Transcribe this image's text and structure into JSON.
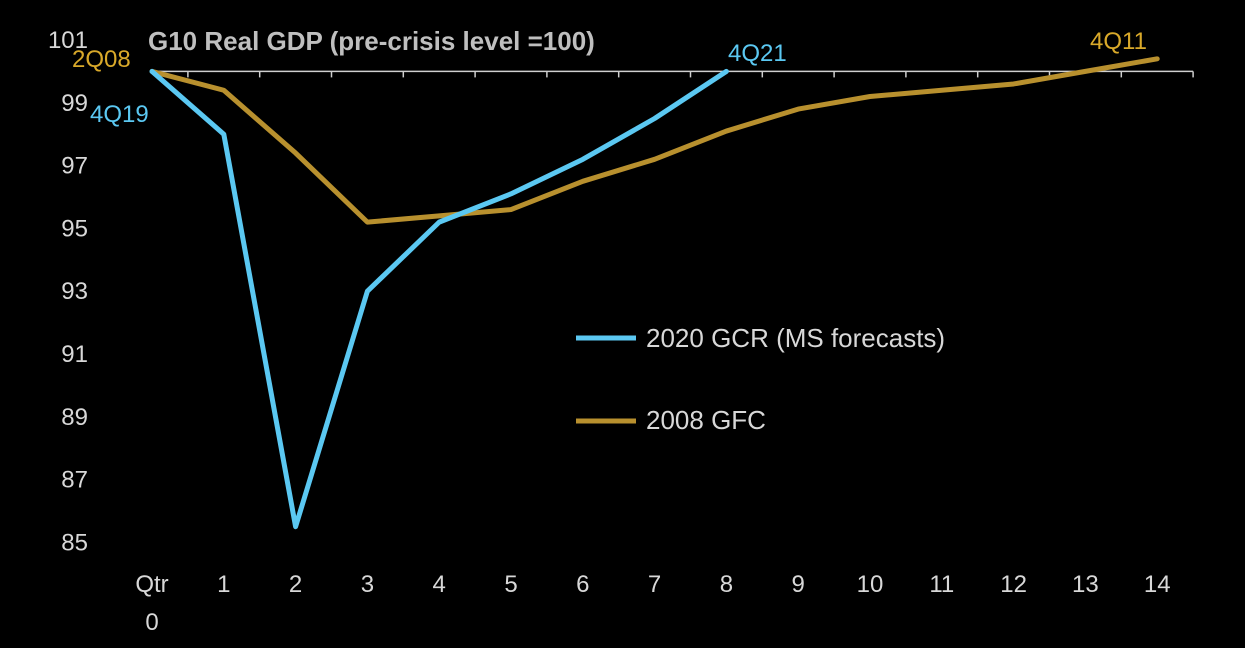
{
  "chart_data": {
    "type": "line",
    "title": "G10 Real GDP (pre-crisis level =100)",
    "x_label_first_line": "Qtr",
    "x": [
      0,
      1,
      2,
      3,
      4,
      5,
      6,
      7,
      8,
      9,
      10,
      11,
      12,
      13,
      14
    ],
    "x_tick_labels": [
      "0",
      "1",
      "2",
      "3",
      "4",
      "5",
      "6",
      "7",
      "8",
      "9",
      "10",
      "11",
      "12",
      "13",
      "14"
    ],
    "y_ticks": [
      85,
      87,
      89,
      91,
      93,
      95,
      97,
      99,
      101
    ],
    "ylim": [
      85,
      101
    ],
    "xlim": [
      0,
      14.5
    ],
    "grid": false,
    "legend_position": "center-right",
    "series": [
      {
        "name": "2020 GCR (MS forecasts)",
        "color": "#5bc8f2",
        "x": [
          0,
          1,
          2,
          3,
          4,
          5,
          6,
          7,
          8
        ],
        "values": [
          100.0,
          98.0,
          85.5,
          93.0,
          95.2,
          96.1,
          97.2,
          98.5,
          100.0
        ]
      },
      {
        "name": "2008 GFC",
        "color": "#b8902e",
        "x": [
          0,
          1,
          2,
          3,
          4,
          5,
          6,
          7,
          8,
          9,
          10,
          11,
          12,
          13,
          14
        ],
        "values": [
          100.0,
          99.4,
          97.4,
          95.2,
          95.4,
          95.6,
          96.5,
          97.2,
          98.1,
          98.8,
          99.2,
          99.4,
          99.6,
          100.0,
          100.4
        ]
      }
    ],
    "annotations": [
      {
        "text": "2Q08",
        "color": "#d9a92a"
      },
      {
        "text": "4Q19",
        "color": "#5bc8f2"
      },
      {
        "text": "4Q21",
        "color": "#5bc8f2"
      },
      {
        "text": "4Q11",
        "color": "#d9a92a"
      }
    ]
  }
}
